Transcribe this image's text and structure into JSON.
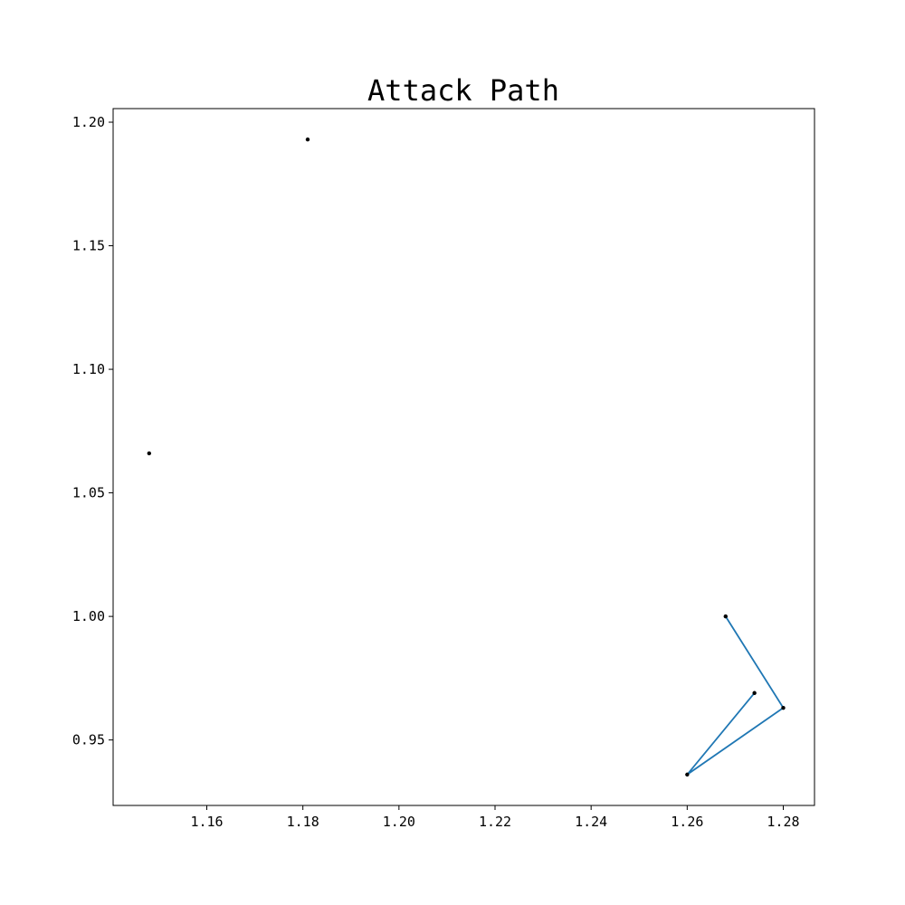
{
  "chart_data": {
    "type": "scatter",
    "title": "Attack Path",
    "xlabel": "",
    "ylabel": "",
    "xlim": [
      1.1405,
      1.2865
    ],
    "ylim": [
      0.9235,
      1.2055
    ],
    "x_ticks": [
      "1.16",
      "1.18",
      "1.20",
      "1.22",
      "1.24",
      "1.26",
      "1.28"
    ],
    "x_tick_values": [
      1.16,
      1.18,
      1.2,
      1.22,
      1.24,
      1.26,
      1.28
    ],
    "y_ticks": [
      "0.95",
      "1.00",
      "1.05",
      "1.10",
      "1.15",
      "1.20"
    ],
    "y_tick_values": [
      0.95,
      1.0,
      1.05,
      1.1,
      1.15,
      1.2
    ],
    "grid": false,
    "line_color": "#1f77b4",
    "marker_color": "#000000",
    "isolated_points": [
      {
        "x": 1.148,
        "y": 1.066
      },
      {
        "x": 1.181,
        "y": 1.193
      }
    ],
    "path": [
      {
        "x": 1.268,
        "y": 1.0
      },
      {
        "x": 1.28,
        "y": 0.963
      },
      {
        "x": 1.26,
        "y": 0.936
      },
      {
        "x": 1.274,
        "y": 0.969
      }
    ]
  }
}
